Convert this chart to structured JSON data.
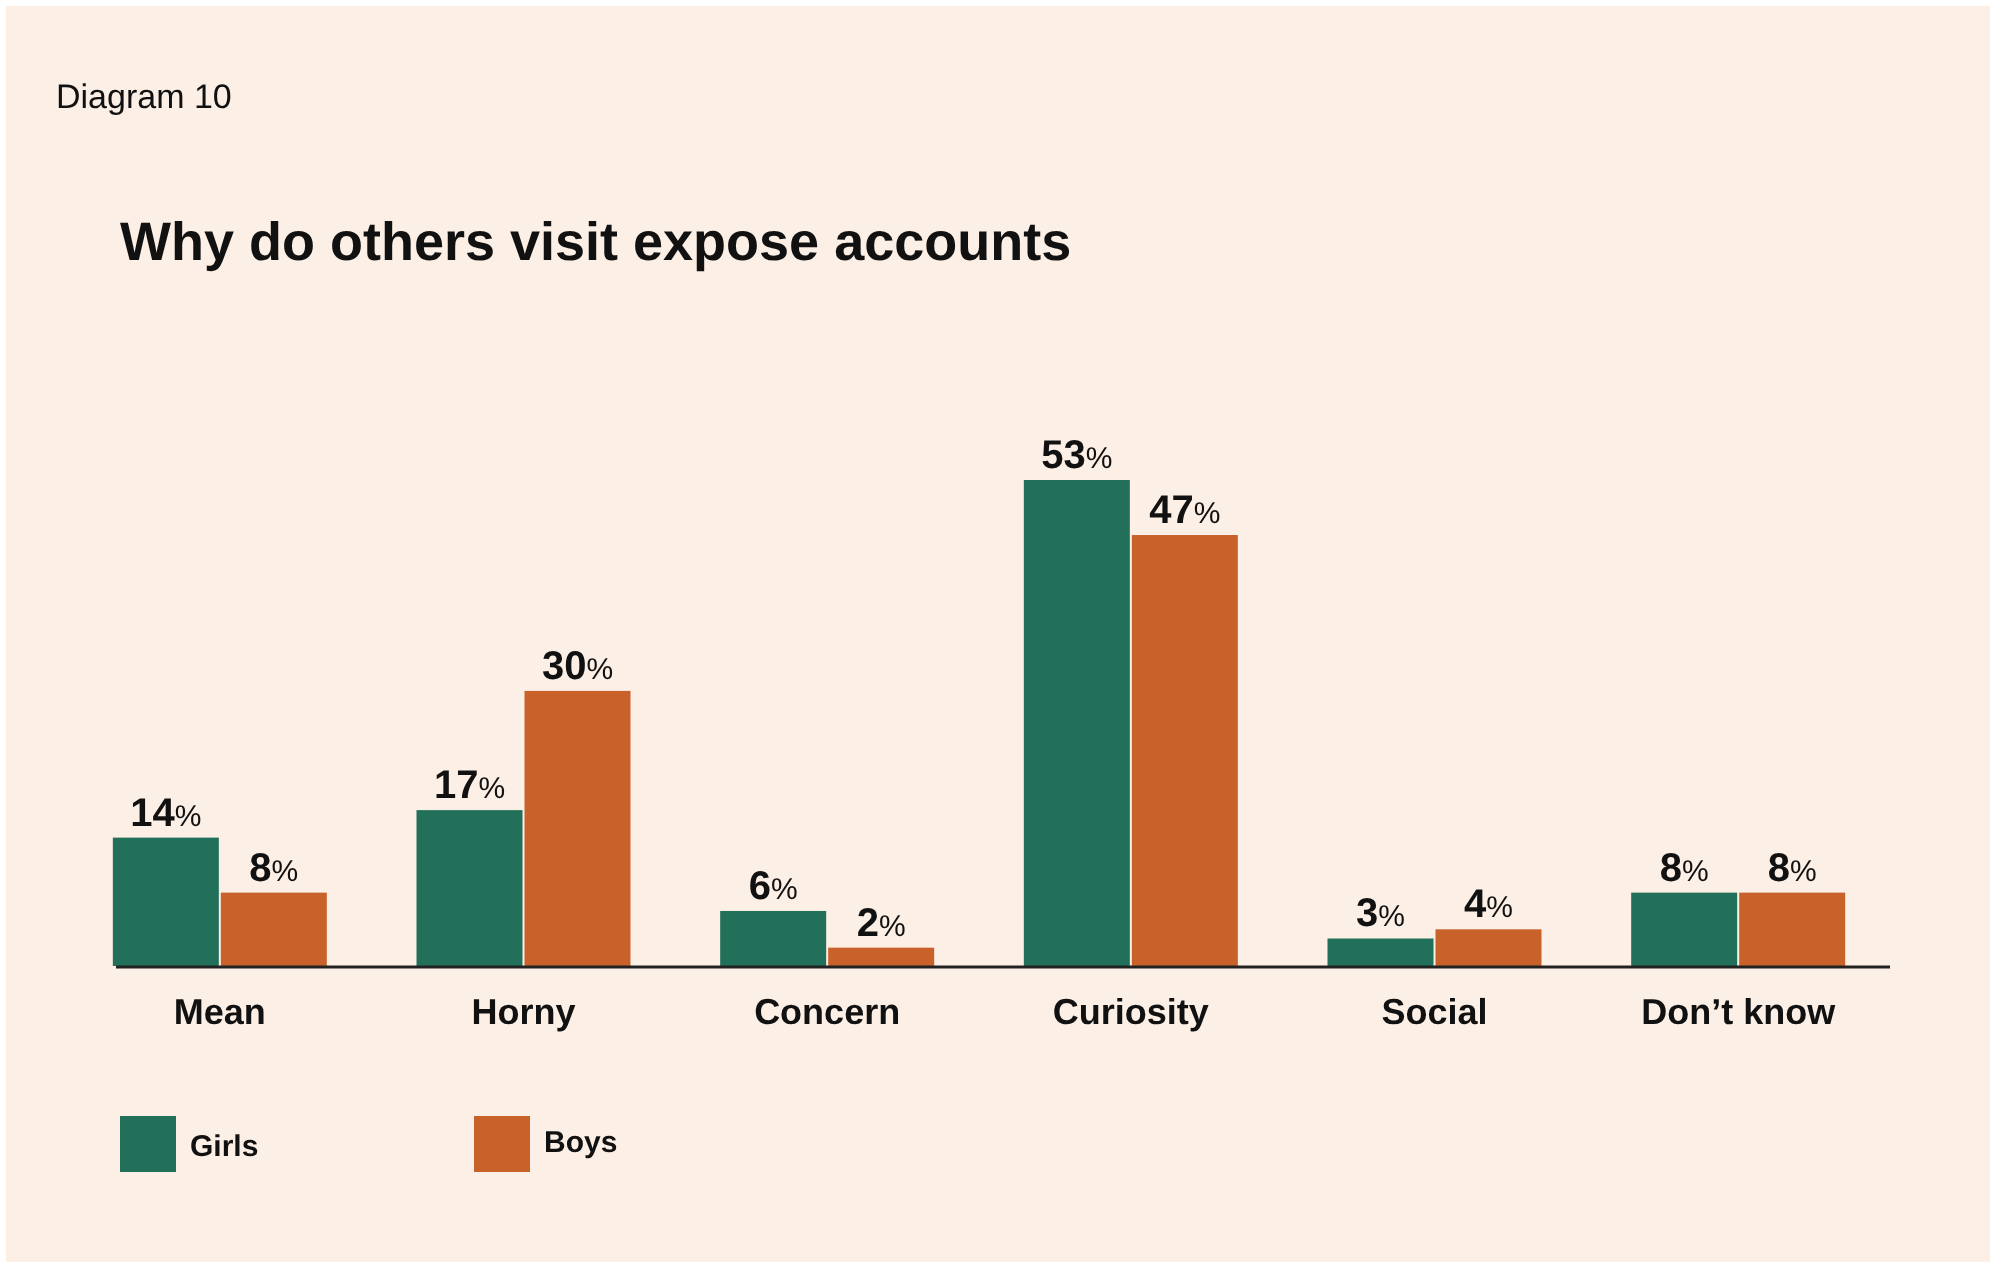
{
  "chart_data": {
    "type": "bar",
    "title": "Why do others visit expose accounts",
    "annotations": [
      "Diagram 10"
    ],
    "categories": [
      "Mean",
      "Horny",
      "Concern",
      "Curiosity",
      "Social",
      "Don’t know"
    ],
    "series": [
      {
        "name": "Girls",
        "color": "#23705a",
        "values": [
          14,
          17,
          6,
          53,
          3,
          8
        ],
        "value_labels": [
          "14%",
          "17%",
          "6%",
          "53%",
          "3%",
          "8%"
        ]
      },
      {
        "name": "Boys",
        "color": "#c8622a",
        "values": [
          8,
          30,
          2,
          47,
          4,
          8
        ],
        "value_labels": [
          "8%",
          "30%",
          "2%",
          "47%",
          "4%",
          "8%"
        ]
      }
    ],
    "legend": "bottom left",
    "grid": false
  }
}
